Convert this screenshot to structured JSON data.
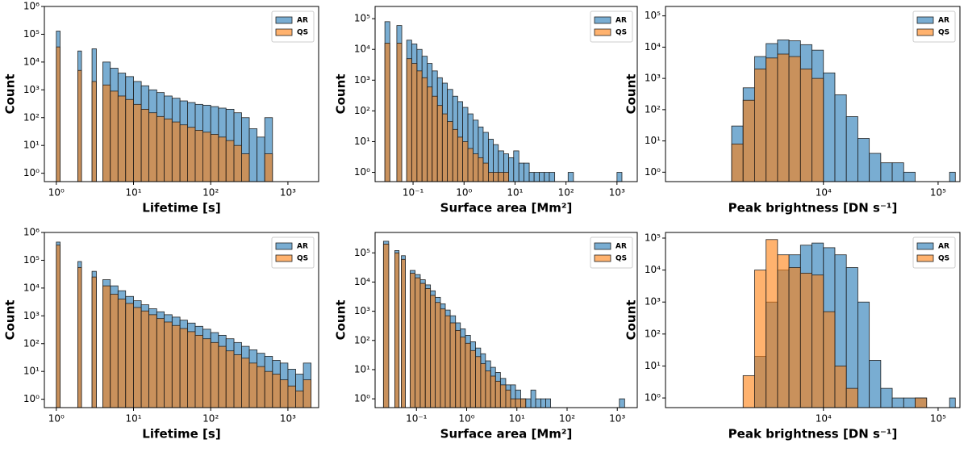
{
  "chart_data": [
    {
      "type": "histogram",
      "xlabel": "Lifetime [s]",
      "ylabel": "Count",
      "xlog": true,
      "ylog": true,
      "legend": "upper right",
      "alpha": 0.6,
      "xlim": [
        0.7,
        2500
      ],
      "ylim": [
        0.5,
        1000000
      ],
      "xticks": [
        {
          "value": 1,
          "label": "10⁰"
        },
        {
          "value": 10,
          "label": "10¹"
        },
        {
          "value": 100,
          "label": "10²"
        },
        {
          "value": 1000,
          "label": "10³"
        }
      ],
      "yticks": [
        {
          "value": 1,
          "label": "10⁰"
        },
        {
          "value": 10,
          "label": "10¹"
        },
        {
          "value": 100,
          "label": "10²"
        },
        {
          "value": 1000,
          "label": "10³"
        },
        {
          "value": 10000,
          "label": "10⁴"
        },
        {
          "value": 100000,
          "label": "10⁵"
        },
        {
          "value": 1000000,
          "label": "10⁶"
        }
      ],
      "bins": [
        1,
        1.12,
        1.9,
        2.12,
        2.9,
        3.3,
        4.0,
        5.0,
        6.3,
        7.9,
        10,
        12.6,
        15.8,
        20,
        25,
        31.6,
        40,
        50,
        63,
        79,
        100,
        126,
        158,
        200,
        251,
        316,
        398,
        501,
        631
      ],
      "series": [
        {
          "name": "AR",
          "color": "#1f77b4",
          "values": [
            130000,
            0,
            25000,
            0,
            30000,
            0,
            10000,
            6000,
            4000,
            3000,
            2000,
            1400,
            1000,
            800,
            600,
            500,
            400,
            350,
            300,
            280,
            250,
            220,
            200,
            150,
            100,
            40,
            20,
            100
          ]
        },
        {
          "name": "QS",
          "color": "#ff7f0e",
          "values": [
            35000,
            0,
            5000,
            0,
            2000,
            0,
            1500,
            900,
            600,
            450,
            300,
            200,
            150,
            110,
            90,
            70,
            55,
            45,
            35,
            30,
            25,
            20,
            15,
            10,
            5,
            0,
            0,
            5
          ]
        }
      ]
    },
    {
      "type": "histogram",
      "xlabel": "Surface area [Mm²]",
      "ylabel": "Count",
      "xlog": true,
      "ylog": true,
      "legend": "upper right",
      "alpha": 0.6,
      "xlim": [
        0.018,
        2500
      ],
      "ylim": [
        0.5,
        250000
      ],
      "xticks": [
        {
          "value": 0.1,
          "label": "10⁻¹"
        },
        {
          "value": 1,
          "label": "10⁰"
        },
        {
          "value": 10,
          "label": "10¹"
        },
        {
          "value": 100,
          "label": "10²"
        },
        {
          "value": 1000,
          "label": "10³"
        }
      ],
      "yticks": [
        {
          "value": 1,
          "label": "10⁰"
        },
        {
          "value": 10,
          "label": "10¹"
        },
        {
          "value": 100,
          "label": "10²"
        },
        {
          "value": 1000,
          "label": "10³"
        },
        {
          "value": 10000,
          "label": "10⁴"
        },
        {
          "value": 100000,
          "label": "10⁵"
        }
      ],
      "bins": [
        0.028,
        0.035,
        0.048,
        0.06,
        0.075,
        0.094,
        0.119,
        0.15,
        0.19,
        0.237,
        0.3,
        0.375,
        0.47,
        0.6,
        0.75,
        0.94,
        1.19,
        1.5,
        1.9,
        2.37,
        3,
        3.75,
        4.7,
        6,
        7.5,
        9.4,
        11.9,
        15,
        19,
        23.7,
        30,
        37.5,
        47,
        60,
        110,
        140,
        1000,
        1250
      ],
      "series": [
        {
          "name": "AR",
          "color": "#1f77b4",
          "values": [
            80000,
            0,
            60000,
            0,
            20000,
            15000,
            10000,
            6000,
            3500,
            2000,
            1200,
            800,
            500,
            300,
            200,
            130,
            80,
            50,
            30,
            20,
            12,
            8,
            5,
            4,
            3,
            5,
            2,
            2,
            1,
            1,
            1,
            1,
            1,
            0,
            1,
            0,
            1
          ]
        },
        {
          "name": "QS",
          "color": "#ff7f0e",
          "values": [
            16000,
            0,
            16000,
            0,
            5000,
            3500,
            2000,
            1200,
            600,
            300,
            150,
            80,
            45,
            25,
            14,
            10,
            6,
            4,
            3,
            2,
            1,
            1,
            1,
            1,
            0,
            0,
            0,
            0,
            0,
            0,
            0,
            0,
            0,
            0,
            0,
            0,
            0
          ]
        }
      ]
    },
    {
      "type": "histogram",
      "xlabel": "Peak brightness [DN s⁻¹]",
      "ylabel": "Count",
      "xlog": true,
      "ylog": true,
      "legend": "upper right",
      "alpha": 0.6,
      "xlim": [
        420,
        155000
      ],
      "ylim": [
        0.5,
        200000
      ],
      "xticks": [
        {
          "value": 10000,
          "label": "10⁴"
        },
        {
          "value": 100000,
          "label": "10⁵"
        }
      ],
      "yticks": [
        {
          "value": 1,
          "label": "10⁰"
        },
        {
          "value": 10,
          "label": "10¹"
        },
        {
          "value": 100,
          "label": "10²"
        },
        {
          "value": 1000,
          "label": "10³"
        },
        {
          "value": 10000,
          "label": "10⁴"
        },
        {
          "value": 100000,
          "label": "10⁵"
        }
      ],
      "bins": [
        1585,
        1995,
        2512,
        3162,
        3981,
        5012,
        6310,
        7943,
        10000,
        12589,
        15849,
        19953,
        25119,
        31623,
        39811,
        50119,
        63096,
        79433,
        100000,
        125893,
        141254
      ],
      "series": [
        {
          "name": "AR",
          "color": "#1f77b4",
          "values": [
            30,
            500,
            5000,
            13000,
            17000,
            16000,
            12000,
            8000,
            1500,
            300,
            60,
            12,
            4,
            2,
            2,
            1,
            0,
            0,
            0,
            1
          ]
        },
        {
          "name": "QS",
          "color": "#ff7f0e",
          "values": [
            8,
            200,
            2000,
            4500,
            6000,
            5000,
            2000,
            1000,
            0,
            0,
            0,
            0,
            0,
            0,
            0,
            0,
            0,
            0,
            0,
            0
          ]
        }
      ]
    },
    {
      "type": "histogram",
      "xlabel": "Lifetime [s]",
      "ylabel": "Count",
      "xlog": true,
      "ylog": true,
      "legend": "upper right",
      "alpha": 0.6,
      "xlim": [
        0.7,
        2500
      ],
      "ylim": [
        0.5,
        1000000
      ],
      "xticks": [
        {
          "value": 1,
          "label": "10⁰"
        },
        {
          "value": 10,
          "label": "10¹"
        },
        {
          "value": 100,
          "label": "10²"
        },
        {
          "value": 1000,
          "label": "10³"
        }
      ],
      "yticks": [
        {
          "value": 1,
          "label": "10⁰"
        },
        {
          "value": 10,
          "label": "10¹"
        },
        {
          "value": 100,
          "label": "10²"
        },
        {
          "value": 1000,
          "label": "10³"
        },
        {
          "value": 10000,
          "label": "10⁴"
        },
        {
          "value": 100000,
          "label": "10⁵"
        },
        {
          "value": 1000000,
          "label": "10⁶"
        }
      ],
      "bins": [
        1,
        1.12,
        1.9,
        2.12,
        2.9,
        3.3,
        4.0,
        5.0,
        6.3,
        7.9,
        10,
        12.6,
        15.8,
        20,
        25,
        31.6,
        40,
        50,
        63,
        79,
        100,
        126,
        158,
        200,
        251,
        316,
        398,
        501,
        631,
        794,
        1000,
        1259,
        1585,
        1995
      ],
      "series": [
        {
          "name": "AR",
          "color": "#1f77b4",
          "values": [
            450000,
            0,
            90000,
            0,
            40000,
            0,
            20000,
            12000,
            8000,
            5000,
            3500,
            2500,
            1800,
            1400,
            1100,
            900,
            700,
            550,
            420,
            330,
            250,
            200,
            150,
            110,
            80,
            60,
            45,
            35,
            25,
            20,
            12,
            8,
            20
          ]
        },
        {
          "name": "QS",
          "color": "#ff7f0e",
          "values": [
            350000,
            0,
            55000,
            0,
            25000,
            0,
            12000,
            6000,
            4000,
            2800,
            2000,
            1500,
            1100,
            800,
            600,
            450,
            350,
            270,
            200,
            150,
            110,
            80,
            55,
            40,
            30,
            20,
            15,
            10,
            8,
            5,
            3,
            2,
            5
          ]
        }
      ]
    },
    {
      "type": "histogram",
      "xlabel": "Surface area [Mm²]",
      "ylabel": "Count",
      "xlog": true,
      "ylog": true,
      "legend": "upper right",
      "alpha": 0.6,
      "xlim": [
        0.015,
        2500
      ],
      "ylim": [
        0.5,
        500000
      ],
      "xticks": [
        {
          "value": 0.1,
          "label": "10⁻¹"
        },
        {
          "value": 1,
          "label": "10⁰"
        },
        {
          "value": 10,
          "label": "10¹"
        },
        {
          "value": 100,
          "label": "10²"
        },
        {
          "value": 1000,
          "label": "10³"
        }
      ],
      "yticks": [
        {
          "value": 1,
          "label": "10⁰"
        },
        {
          "value": 10,
          "label": "10¹"
        },
        {
          "value": 100,
          "label": "10²"
        },
        {
          "value": 1000,
          "label": "10³"
        },
        {
          "value": 10000,
          "label": "10⁴"
        },
        {
          "value": 100000,
          "label": "10⁵"
        }
      ],
      "bins": [
        0.022,
        0.028,
        0.037,
        0.045,
        0.05,
        0.06,
        0.075,
        0.094,
        0.119,
        0.15,
        0.19,
        0.237,
        0.3,
        0.375,
        0.47,
        0.6,
        0.75,
        0.94,
        1.19,
        1.5,
        1.9,
        2.37,
        3,
        3.75,
        4.7,
        6,
        7.5,
        9.4,
        11.9,
        15,
        19,
        23.7,
        30,
        37.5,
        47,
        60,
        1100,
        1400
      ],
      "series": [
        {
          "name": "AR",
          "color": "#1f77b4",
          "values": [
            250000,
            0,
            120000,
            0,
            80000,
            0,
            25000,
            18000,
            12000,
            8000,
            5000,
            3000,
            1800,
            1100,
            700,
            400,
            250,
            150,
            90,
            55,
            35,
            20,
            12,
            8,
            5,
            3,
            3,
            2,
            1,
            1,
            2,
            1,
            1,
            1,
            0,
            0,
            1
          ]
        },
        {
          "name": "QS",
          "color": "#ff7f0e",
          "values": [
            200000,
            0,
            100000,
            0,
            60000,
            0,
            20000,
            14000,
            9000,
            6000,
            3500,
            2000,
            1200,
            700,
            400,
            220,
            130,
            80,
            45,
            28,
            16,
            9,
            6,
            4,
            3,
            2,
            1,
            1,
            1,
            0,
            0,
            0,
            0,
            0,
            0,
            0,
            0
          ]
        }
      ]
    },
    {
      "type": "histogram",
      "xlabel": "Peak brightness [DN s⁻¹]",
      "ylabel": "Count",
      "xlog": true,
      "ylog": true,
      "legend": "upper right",
      "alpha": 0.6,
      "xlim": [
        420,
        155000
      ],
      "ylim": [
        0.5,
        150000
      ],
      "xticks": [
        {
          "value": 10000,
          "label": "10⁴"
        },
        {
          "value": 100000,
          "label": "10⁵"
        }
      ],
      "yticks": [
        {
          "value": 1,
          "label": "10⁰"
        },
        {
          "value": 10,
          "label": "10¹"
        },
        {
          "value": 100,
          "label": "10²"
        },
        {
          "value": 1000,
          "label": "10³"
        },
        {
          "value": 10000,
          "label": "10⁴"
        },
        {
          "value": 100000,
          "label": "10⁵"
        }
      ],
      "bins": [
        1995,
        2512,
        3162,
        3981,
        5012,
        6310,
        7943,
        10000,
        12589,
        15849,
        19953,
        25119,
        31623,
        39811,
        50119,
        63096,
        79433,
        100000,
        125893,
        141254
      ],
      "series": [
        {
          "name": "AR",
          "color": "#1f77b4",
          "values": [
            0,
            20,
            1000,
            10000,
            30000,
            60000,
            70000,
            50000,
            30000,
            12000,
            1000,
            15,
            2,
            1,
            1,
            1,
            0,
            0,
            1
          ]
        },
        {
          "name": "QS",
          "color": "#ff7f0e",
          "values": [
            5,
            10000,
            90000,
            30000,
            12000,
            8000,
            7000,
            500,
            10,
            2,
            0,
            0,
            0,
            0,
            0,
            1,
            0,
            0,
            0
          ]
        }
      ]
    }
  ]
}
